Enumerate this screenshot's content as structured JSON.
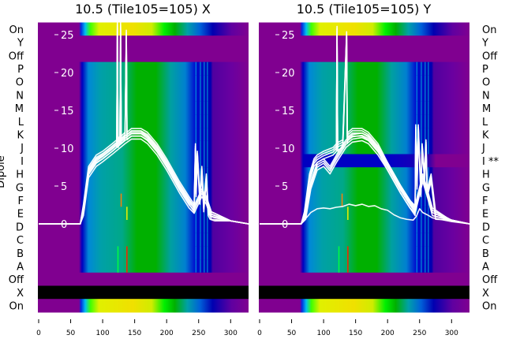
{
  "chart_data": [
    {
      "type": "heatmap",
      "title": "10.5 (Tile105=105) X",
      "ylabel": "Dipole",
      "xlim": [
        0,
        328
      ],
      "ylim": [
        0,
        26
      ],
      "xticks": [
        "0",
        "50",
        "100",
        "150",
        "200",
        "250",
        "300"
      ],
      "yticks": [
        "0",
        "5",
        "10",
        "15",
        "20",
        "25"
      ],
      "rows": [
        {
          "label": "On",
          "kind": "on"
        },
        {
          "label": "Y",
          "kind": "off"
        },
        {
          "label": "Off",
          "kind": "off"
        },
        {
          "label": "P",
          "kind": "dipole"
        },
        {
          "label": "O",
          "kind": "dipole"
        },
        {
          "label": "N",
          "kind": "dipole"
        },
        {
          "label": "M",
          "kind": "dipole"
        },
        {
          "label": "L",
          "kind": "dipole"
        },
        {
          "label": "K",
          "kind": "dipole"
        },
        {
          "label": "J",
          "kind": "dipole"
        },
        {
          "label": "I",
          "kind": "dipole"
        },
        {
          "label": "H",
          "kind": "dipole"
        },
        {
          "label": "G",
          "kind": "dipole"
        },
        {
          "label": "F",
          "kind": "dipole"
        },
        {
          "label": "E",
          "kind": "dipole"
        },
        {
          "label": "D",
          "kind": "dipole"
        },
        {
          "label": "C",
          "kind": "dipole"
        },
        {
          "label": "B",
          "kind": "dipole"
        },
        {
          "label": "A",
          "kind": "dipole"
        },
        {
          "label": "Off",
          "kind": "off"
        },
        {
          "label": "X",
          "kind": "missing"
        },
        {
          "label": "On",
          "kind": "on"
        }
      ],
      "series": [
        {
          "name": "dipole spectra (main)",
          "x": [
            0,
            65,
            70,
            78,
            90,
            100,
            115,
            122,
            123,
            124,
            127,
            128,
            129,
            135,
            137,
            138,
            145,
            160,
            170,
            185,
            200,
            220,
            235,
            243,
            245,
            246,
            248,
            252,
            255,
            258,
            262,
            265,
            268,
            275,
            300,
            328
          ],
          "y": [
            0,
            0,
            2,
            7,
            8.5,
            9,
            10,
            10.5,
            26,
            10.5,
            11,
            26,
            11,
            11.5,
            25,
            11.5,
            12,
            12,
            11.5,
            10,
            8,
            5,
            3,
            2,
            10,
            4,
            9,
            3,
            7,
            2,
            6,
            1.5,
            1,
            0.8,
            0.4,
            0
          ]
        },
        {
          "name": "dipole spectra (spread)",
          "x": [
            0,
            65,
            70,
            78,
            90,
            100,
            115,
            135,
            145,
            160,
            170,
            185,
            200,
            220,
            235,
            243,
            255,
            262,
            270,
            300,
            328
          ],
          "y": [
            0,
            0,
            1.5,
            6.5,
            8,
            8.6,
            9.6,
            11,
            11.6,
            11.6,
            11,
            9.5,
            7.5,
            4.5,
            2.5,
            1.8,
            4,
            3,
            1,
            0.4,
            0
          ]
        }
      ]
    },
    {
      "type": "heatmap",
      "title": "10.5 (Tile105=105) Y",
      "xlim": [
        0,
        328
      ],
      "ylim": [
        0,
        26
      ],
      "xticks": [
        "0",
        "50",
        "100",
        "150",
        "200",
        "250",
        "300"
      ],
      "yticks": [
        "0",
        "5",
        "10",
        "15",
        "20",
        "25"
      ],
      "rows": [
        {
          "label": "On",
          "kind": "on"
        },
        {
          "label": "Y",
          "kind": "off"
        },
        {
          "label": "Off",
          "kind": "off"
        },
        {
          "label": "P",
          "kind": "dipole"
        },
        {
          "label": "O",
          "kind": "dipole"
        },
        {
          "label": "N",
          "kind": "dipole"
        },
        {
          "label": "M",
          "kind": "dipole"
        },
        {
          "label": "L",
          "kind": "dipole"
        },
        {
          "label": "K",
          "kind": "dipole"
        },
        {
          "label": "J",
          "kind": "dipole"
        },
        {
          "label": "I **",
          "kind": "flagged"
        },
        {
          "label": "H",
          "kind": "dipole"
        },
        {
          "label": "G",
          "kind": "dipole"
        },
        {
          "label": "F",
          "kind": "dipole"
        },
        {
          "label": "E",
          "kind": "dipole"
        },
        {
          "label": "D",
          "kind": "dipole"
        },
        {
          "label": "C",
          "kind": "dipole"
        },
        {
          "label": "B",
          "kind": "dipole"
        },
        {
          "label": "A",
          "kind": "dipole"
        },
        {
          "label": "Off",
          "kind": "off"
        },
        {
          "label": "X",
          "kind": "missing"
        },
        {
          "label": "On",
          "kind": "on"
        }
      ],
      "series": [
        {
          "name": "dipole spectra (main)",
          "x": [
            0,
            65,
            70,
            78,
            85,
            90,
            100,
            115,
            120,
            121,
            122,
            123,
            130,
            136,
            137,
            138,
            145,
            160,
            170,
            185,
            200,
            220,
            235,
            243,
            244,
            246,
            248,
            252,
            254,
            258,
            260,
            262,
            268,
            275,
            300,
            328
          ],
          "y": [
            0,
            0,
            1,
            6,
            8,
            8.5,
            9,
            9.5,
            10,
            25.5,
            10,
            10.2,
            10.5,
            24.8,
            11,
            11.5,
            12,
            12,
            11.5,
            10,
            7.5,
            4.5,
            2.5,
            1.5,
            12.5,
            5,
            12.5,
            4,
            10,
            6,
            10.5,
            4,
            6,
            1,
            0.5,
            0
          ]
        },
        {
          "name": "dipole spectra (spread)",
          "x": [
            0,
            65,
            72,
            80,
            90,
            100,
            110,
            120,
            135,
            145,
            160,
            170,
            185,
            200,
            220,
            235,
            243,
            255,
            262,
            270,
            300,
            328
          ],
          "y": [
            0,
            0,
            1,
            5,
            7.5,
            8,
            7,
            8.5,
            10.5,
            11.2,
            11.4,
            11,
            9.5,
            7.5,
            4.5,
            2.5,
            1.8,
            6,
            4,
            1.5,
            0.4,
            0
          ]
        },
        {
          "name": "dipole spectra (low)",
          "x": [
            0,
            65,
            70,
            80,
            90,
            100,
            110,
            120,
            130,
            140,
            150,
            160,
            170,
            180,
            190,
            200,
            210,
            220,
            230,
            240,
            245,
            250,
            255,
            262,
            270,
            300,
            328
          ],
          "y": [
            0,
            0,
            0.5,
            1.5,
            2,
            2.1,
            2,
            2.2,
            2.3,
            2.6,
            2.4,
            2.6,
            2.3,
            2.4,
            2,
            1.8,
            1.2,
            0.8,
            0.6,
            0.5,
            1,
            2,
            1.5,
            1.2,
            0.8,
            0.3,
            0
          ]
        }
      ]
    }
  ]
}
